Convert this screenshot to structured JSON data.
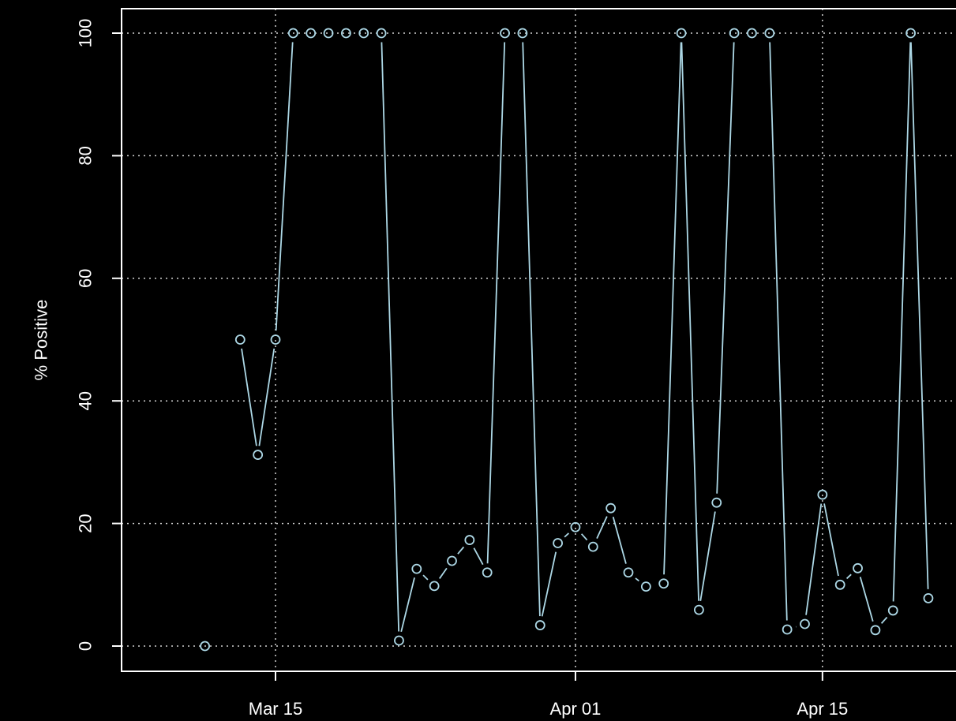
{
  "chart_data": {
    "type": "line",
    "title": "",
    "xlabel": "",
    "ylabel": "% Positive",
    "x_type": "date",
    "year": "2020",
    "xlim": [
      "2020-03-06",
      "2020-04-21"
    ],
    "ylim": [
      0,
      100
    ],
    "x_ticks": [
      {
        "date": "2020-03-15",
        "label": "Mar 15"
      },
      {
        "date": "2020-04-01",
        "label": "Apr 01"
      },
      {
        "date": "2020-04-15",
        "label": "Apr 15"
      }
    ],
    "y_ticks": [
      0,
      20,
      40,
      60,
      80,
      100
    ],
    "grid": true,
    "background_color": "#000000",
    "foreground_color": "#ffffff",
    "series": [
      {
        "color": "#add8e6",
        "marker": "open-circle",
        "points": [
          {
            "date": "2020-03-11",
            "value": 0
          },
          {
            "date": "2020-03-12",
            "value": null
          },
          {
            "date": "2020-03-13",
            "value": 50
          },
          {
            "date": "2020-03-14",
            "value": 31.2
          },
          {
            "date": "2020-03-15",
            "value": 50
          },
          {
            "date": "2020-03-16",
            "value": 100
          },
          {
            "date": "2020-03-17",
            "value": 100
          },
          {
            "date": "2020-03-18",
            "value": 100
          },
          {
            "date": "2020-03-19",
            "value": 100
          },
          {
            "date": "2020-03-20",
            "value": 100
          },
          {
            "date": "2020-03-21",
            "value": 100
          },
          {
            "date": "2020-03-22",
            "value": 0.9
          },
          {
            "date": "2020-03-23",
            "value": 12.6
          },
          {
            "date": "2020-03-24",
            "value": 9.8
          },
          {
            "date": "2020-03-25",
            "value": 13.9
          },
          {
            "date": "2020-03-26",
            "value": 17.3
          },
          {
            "date": "2020-03-27",
            "value": 12.0
          },
          {
            "date": "2020-03-28",
            "value": 100
          },
          {
            "date": "2020-03-29",
            "value": 100
          },
          {
            "date": "2020-03-30",
            "value": 3.4
          },
          {
            "date": "2020-03-31",
            "value": 16.8
          },
          {
            "date": "2020-04-01",
            "value": 19.4
          },
          {
            "date": "2020-04-02",
            "value": 16.2
          },
          {
            "date": "2020-04-03",
            "value": 22.5
          },
          {
            "date": "2020-04-04",
            "value": 12.0
          },
          {
            "date": "2020-04-05",
            "value": 9.7
          },
          {
            "date": "2020-04-06",
            "value": 10.2
          },
          {
            "date": "2020-04-07",
            "value": 100
          },
          {
            "date": "2020-04-08",
            "value": 5.9
          },
          {
            "date": "2020-04-09",
            "value": 23.4
          },
          {
            "date": "2020-04-10",
            "value": 100
          },
          {
            "date": "2020-04-11",
            "value": 100
          },
          {
            "date": "2020-04-12",
            "value": 100
          },
          {
            "date": "2020-04-13",
            "value": 2.7
          },
          {
            "date": "2020-04-14",
            "value": 3.6
          },
          {
            "date": "2020-04-15",
            "value": 24.7
          },
          {
            "date": "2020-04-16",
            "value": 10.0
          },
          {
            "date": "2020-04-17",
            "value": 12.7
          },
          {
            "date": "2020-04-18",
            "value": 2.6
          },
          {
            "date": "2020-04-19",
            "value": 5.8
          },
          {
            "date": "2020-04-20",
            "value": 100
          },
          {
            "date": "2020-04-21",
            "value": 7.8
          }
        ]
      }
    ]
  }
}
